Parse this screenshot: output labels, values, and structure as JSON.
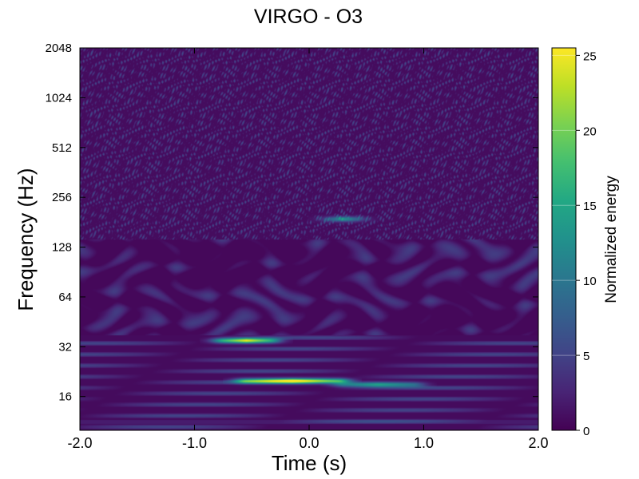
{
  "chart_data": {
    "type": "heatmap",
    "title": "VIRGO - O3",
    "xlabel": "Time (s)",
    "ylabel": "Frequency (Hz)",
    "xlim": [
      -2.0,
      2.0
    ],
    "ylim": [
      10,
      2048
    ],
    "yscale": "log2",
    "x_ticks": [
      -2.0,
      -1.0,
      0.0,
      1.0,
      2.0
    ],
    "x_tick_labels": [
      "-2.0",
      "-1.0",
      "0.0",
      "1.0",
      "2.0"
    ],
    "y_ticks": [
      16,
      32,
      64,
      128,
      256,
      512,
      1024,
      2048
    ],
    "y_tick_labels": [
      "16",
      "32",
      "64",
      "128",
      "256",
      "512",
      "1024",
      "2048"
    ],
    "colormap": "viridis",
    "colorbar": {
      "label": "Normalized energy",
      "range": [
        0,
        25.5
      ],
      "ticks": [
        0,
        5,
        10,
        15,
        20,
        25
      ],
      "tick_labels": [
        "0",
        "5",
        "10",
        "15",
        "20",
        "25"
      ]
    },
    "features": [
      {
        "t_start": -0.75,
        "t_end": -0.35,
        "freq": 35,
        "peak_energy": 24
      },
      {
        "t_start": -0.55,
        "t_end": 0.25,
        "freq": 20,
        "peak_energy": 25.5
      },
      {
        "t_start": 0.3,
        "t_end": 0.9,
        "freq": 19,
        "peak_energy": 14
      },
      {
        "t_start": 0.2,
        "t_end": 0.4,
        "freq": 190,
        "peak_energy": 12
      }
    ]
  }
}
